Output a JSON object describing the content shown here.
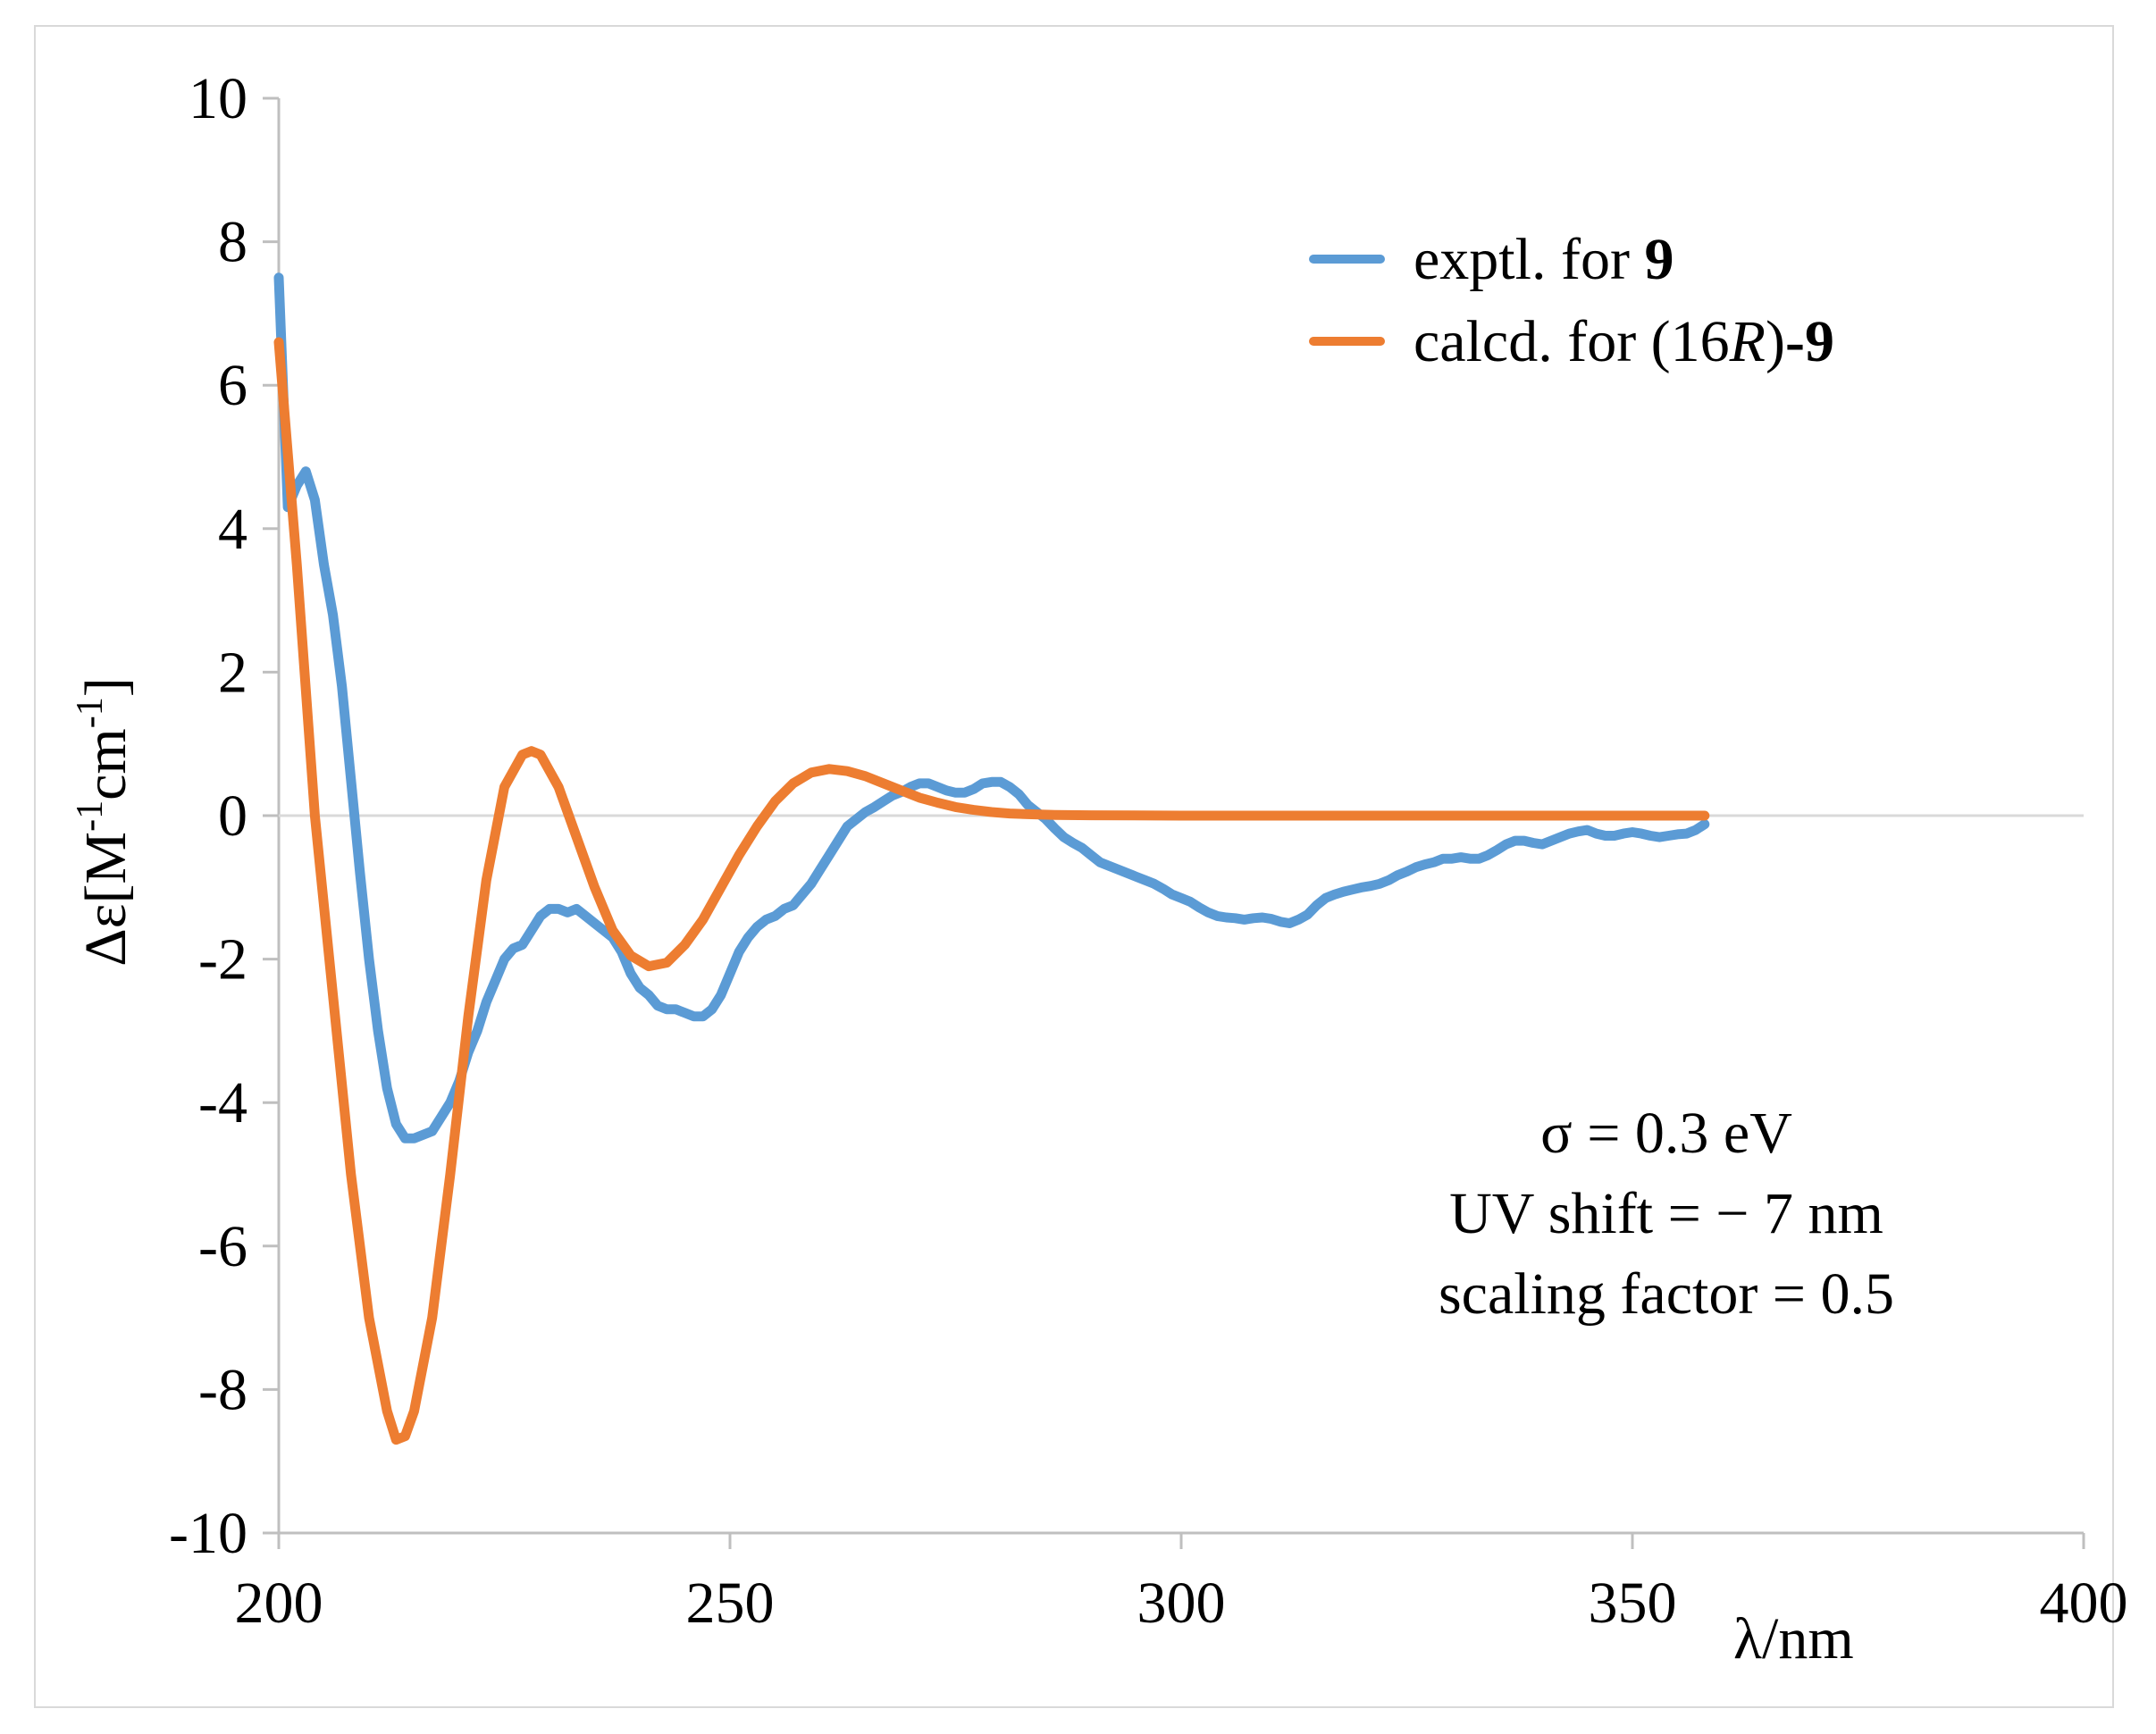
{
  "chart_data": {
    "type": "line",
    "title": "",
    "xlabel": "λ/nm",
    "ylabel": "Δε[M-1cm-1]",
    "ylabel_parts": {
      "pre": "Δε[M",
      "sup1": "-1",
      "mid": "cm",
      "sup2": "-1",
      "post": "]"
    },
    "xlim": [
      200,
      400
    ],
    "ylim": [
      -10,
      10
    ],
    "x_ticks": [
      200,
      250,
      300,
      350,
      400
    ],
    "y_ticks": [
      10,
      8,
      6,
      4,
      2,
      0,
      -2,
      -4,
      -6,
      -8,
      -10
    ],
    "grid": false,
    "legend_position": "top-right",
    "series": [
      {
        "name": "exptl. for 9",
        "legend": {
          "text": "exptl. for ",
          "bold": "9"
        },
        "color": "#5b9bd5",
        "points": [
          [
            200,
            7.5
          ],
          [
            201,
            4.3
          ],
          [
            202,
            4.6
          ],
          [
            203,
            4.8
          ],
          [
            204,
            4.4
          ],
          [
            205,
            3.5
          ],
          [
            206,
            2.8
          ],
          [
            207,
            1.8
          ],
          [
            208,
            0.5
          ],
          [
            209,
            -0.8
          ],
          [
            210,
            -2.0
          ],
          [
            211,
            -3.0
          ],
          [
            212,
            -3.8
          ],
          [
            213,
            -4.3
          ],
          [
            214,
            -4.5
          ],
          [
            215,
            -4.5
          ],
          [
            216,
            -4.45
          ],
          [
            217,
            -4.4
          ],
          [
            218,
            -4.2
          ],
          [
            219,
            -4.0
          ],
          [
            220,
            -3.7
          ],
          [
            221,
            -3.3
          ],
          [
            222,
            -3.0
          ],
          [
            223,
            -2.6
          ],
          [
            224,
            -2.3
          ],
          [
            225,
            -2.0
          ],
          [
            226,
            -1.85
          ],
          [
            227,
            -1.8
          ],
          [
            228,
            -1.6
          ],
          [
            229,
            -1.4
          ],
          [
            230,
            -1.3
          ],
          [
            231,
            -1.3
          ],
          [
            232,
            -1.35
          ],
          [
            233,
            -1.3
          ],
          [
            234,
            -1.4
          ],
          [
            235,
            -1.5
          ],
          [
            236,
            -1.6
          ],
          [
            237,
            -1.7
          ],
          [
            238,
            -1.9
          ],
          [
            239,
            -2.2
          ],
          [
            240,
            -2.4
          ],
          [
            241,
            -2.5
          ],
          [
            242,
            -2.65
          ],
          [
            243,
            -2.7
          ],
          [
            244,
            -2.7
          ],
          [
            245,
            -2.75
          ],
          [
            246,
            -2.8
          ],
          [
            247,
            -2.8
          ],
          [
            248,
            -2.7
          ],
          [
            249,
            -2.5
          ],
          [
            250,
            -2.2
          ],
          [
            251,
            -1.9
          ],
          [
            252,
            -1.7
          ],
          [
            253,
            -1.55
          ],
          [
            254,
            -1.45
          ],
          [
            255,
            -1.4
          ],
          [
            256,
            -1.3
          ],
          [
            257,
            -1.25
          ],
          [
            258,
            -1.1
          ],
          [
            259,
            -0.95
          ],
          [
            260,
            -0.75
          ],
          [
            261,
            -0.55
          ],
          [
            262,
            -0.35
          ],
          [
            263,
            -0.15
          ],
          [
            264,
            -0.05
          ],
          [
            265,
            0.05
          ],
          [
            266,
            0.12
          ],
          [
            267,
            0.2
          ],
          [
            268,
            0.28
          ],
          [
            269,
            0.33
          ],
          [
            270,
            0.4
          ],
          [
            271,
            0.45
          ],
          [
            272,
            0.45
          ],
          [
            273,
            0.4
          ],
          [
            274,
            0.35
          ],
          [
            275,
            0.32
          ],
          [
            276,
            0.32
          ],
          [
            277,
            0.37
          ],
          [
            278,
            0.45
          ],
          [
            279,
            0.47
          ],
          [
            280,
            0.47
          ],
          [
            281,
            0.4
          ],
          [
            282,
            0.3
          ],
          [
            283,
            0.15
          ],
          [
            284,
            0.05
          ],
          [
            285,
            -0.05
          ],
          [
            286,
            -0.18
          ],
          [
            287,
            -0.3
          ],
          [
            288,
            -0.38
          ],
          [
            289,
            -0.45
          ],
          [
            290,
            -0.55
          ],
          [
            291,
            -0.65
          ],
          [
            292,
            -0.7
          ],
          [
            293,
            -0.75
          ],
          [
            294,
            -0.8
          ],
          [
            295,
            -0.85
          ],
          [
            296,
            -0.9
          ],
          [
            297,
            -0.95
          ],
          [
            298,
            -1.02
          ],
          [
            299,
            -1.1
          ],
          [
            300,
            -1.15
          ],
          [
            301,
            -1.2
          ],
          [
            302,
            -1.28
          ],
          [
            303,
            -1.35
          ],
          [
            304,
            -1.4
          ],
          [
            305,
            -1.42
          ],
          [
            306,
            -1.43
          ],
          [
            307,
            -1.45
          ],
          [
            308,
            -1.43
          ],
          [
            309,
            -1.42
          ],
          [
            310,
            -1.44
          ],
          [
            311,
            -1.48
          ],
          [
            312,
            -1.5
          ],
          [
            313,
            -1.45
          ],
          [
            314,
            -1.38
          ],
          [
            315,
            -1.25
          ],
          [
            316,
            -1.15
          ],
          [
            317,
            -1.1
          ],
          [
            318,
            -1.06
          ],
          [
            319,
            -1.03
          ],
          [
            320,
            -1.0
          ],
          [
            321,
            -0.98
          ],
          [
            322,
            -0.95
          ],
          [
            323,
            -0.9
          ],
          [
            324,
            -0.83
          ],
          [
            325,
            -0.78
          ],
          [
            326,
            -0.72
          ],
          [
            327,
            -0.68
          ],
          [
            328,
            -0.65
          ],
          [
            329,
            -0.6
          ],
          [
            330,
            -0.6
          ],
          [
            331,
            -0.58
          ],
          [
            332,
            -0.6
          ],
          [
            333,
            -0.6
          ],
          [
            334,
            -0.55
          ],
          [
            335,
            -0.48
          ],
          [
            336,
            -0.4
          ],
          [
            337,
            -0.35
          ],
          [
            338,
            -0.35
          ],
          [
            339,
            -0.38
          ],
          [
            340,
            -0.4
          ],
          [
            341,
            -0.35
          ],
          [
            342,
            -0.3
          ],
          [
            343,
            -0.25
          ],
          [
            344,
            -0.22
          ],
          [
            345,
            -0.2
          ],
          [
            346,
            -0.25
          ],
          [
            347,
            -0.28
          ],
          [
            348,
            -0.28
          ],
          [
            349,
            -0.25
          ],
          [
            350,
            -0.23
          ],
          [
            351,
            -0.25
          ],
          [
            352,
            -0.28
          ],
          [
            353,
            -0.3
          ],
          [
            354,
            -0.28
          ],
          [
            355,
            -0.26
          ],
          [
            356,
            -0.25
          ],
          [
            357,
            -0.2
          ],
          [
            358,
            -0.12
          ]
        ]
      },
      {
        "name": "calcd. for (16R)-9",
        "legend": {
          "text": "calcd. for (16",
          "italic": "R",
          "text2": ")",
          "bold": "-9"
        },
        "color": "#ed7d31",
        "points": [
          [
            200,
            6.6
          ],
          [
            202,
            3.5
          ],
          [
            204,
            0.0
          ],
          [
            206,
            -2.5
          ],
          [
            208,
            -5.0
          ],
          [
            210,
            -7.0
          ],
          [
            212,
            -8.3
          ],
          [
            213,
            -8.7
          ],
          [
            214,
            -8.65
          ],
          [
            215,
            -8.3
          ],
          [
            217,
            -7.0
          ],
          [
            219,
            -5.0
          ],
          [
            221,
            -2.8
          ],
          [
            223,
            -0.9
          ],
          [
            225,
            0.4
          ],
          [
            227,
            0.85
          ],
          [
            228,
            0.9
          ],
          [
            229,
            0.85
          ],
          [
            231,
            0.4
          ],
          [
            233,
            -0.3
          ],
          [
            235,
            -1.0
          ],
          [
            237,
            -1.6
          ],
          [
            239,
            -1.95
          ],
          [
            241,
            -2.1
          ],
          [
            243,
            -2.05
          ],
          [
            245,
            -1.8
          ],
          [
            247,
            -1.45
          ],
          [
            249,
            -1.0
          ],
          [
            251,
            -0.55
          ],
          [
            253,
            -0.15
          ],
          [
            255,
            0.2
          ],
          [
            257,
            0.45
          ],
          [
            259,
            0.6
          ],
          [
            261,
            0.65
          ],
          [
            263,
            0.62
          ],
          [
            265,
            0.55
          ],
          [
            267,
            0.45
          ],
          [
            269,
            0.35
          ],
          [
            271,
            0.25
          ],
          [
            273,
            0.18
          ],
          [
            275,
            0.12
          ],
          [
            277,
            0.08
          ],
          [
            279,
            0.05
          ],
          [
            281,
            0.03
          ],
          [
            283,
            0.02
          ],
          [
            286,
            0.01
          ],
          [
            290,
            0.005
          ],
          [
            300,
            0.0
          ],
          [
            320,
            0.0
          ],
          [
            358,
            0.0
          ]
        ]
      }
    ],
    "annotations": [
      "σ = 0.3 eV",
      "UV shift = − 7 nm",
      "scaling factor = 0.5"
    ]
  }
}
